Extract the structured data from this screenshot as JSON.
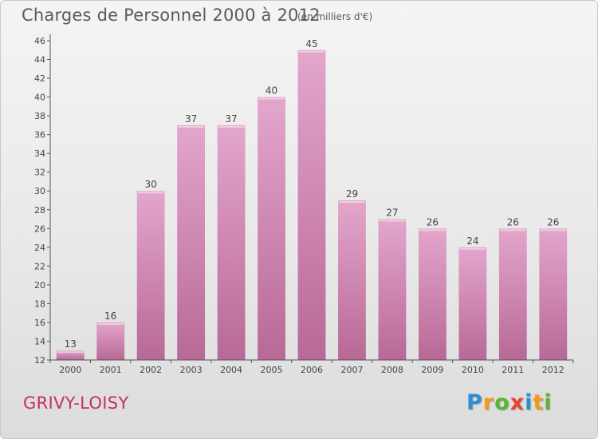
{
  "title": "Charges de Personnel 2000 à 2012",
  "subtitle": "(en milliers d'€)",
  "place": "GRIVY-LOISY",
  "logo": {
    "letters": [
      "P",
      "r",
      "o",
      "x",
      "i",
      "t",
      "i"
    ],
    "colors": [
      "#2f8fd1",
      "#f29a1c",
      "#5bb533",
      "#e8432e",
      "#2f8fd1",
      "#f29a1c",
      "#5bb533"
    ]
  },
  "colors": {
    "bar_top": "#e3a6cc",
    "bar_bottom": "#b86996",
    "axis": "#555555",
    "text": "#444444",
    "place": "#c42e6b"
  },
  "chart_data": {
    "type": "bar",
    "categories": [
      "2000",
      "2001",
      "2002",
      "2003",
      "2004",
      "2005",
      "2006",
      "2007",
      "2008",
      "2009",
      "2010",
      "2011",
      "2012"
    ],
    "values": [
      13,
      16,
      30,
      37,
      37,
      40,
      45,
      29,
      27,
      26,
      24,
      26,
      26
    ],
    "ylim": [
      12,
      46
    ],
    "yticks": [
      12,
      14,
      16,
      18,
      20,
      22,
      24,
      26,
      28,
      30,
      32,
      34,
      36,
      38,
      40,
      42,
      44,
      46
    ],
    "xlabel": "",
    "ylabel": "",
    "grid": false,
    "data_labels": true
  }
}
